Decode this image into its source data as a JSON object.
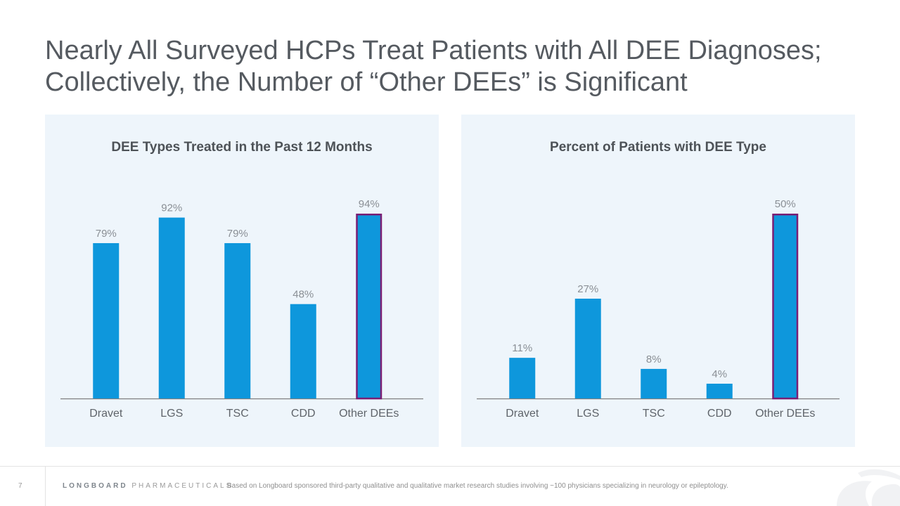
{
  "title": {
    "line1": "Nearly All Surveyed HCPs Treat Patients with All DEE Diagnoses;",
    "line2": "Collectively, the Number of “Other DEEs” is Significant"
  },
  "colors": {
    "bar": "#0e97dc",
    "highlight_outline": "#7a1e74",
    "panel_bg": "#eef5fb",
    "axis": "#7f7f7f"
  },
  "chart_data": [
    {
      "type": "bar",
      "title": "DEE Types Treated in the Past 12 Months",
      "categories": [
        "Dravet",
        "LGS",
        "TSC",
        "CDD",
        "Other DEEs"
      ],
      "values": [
        79,
        92,
        79,
        48,
        94
      ],
      "data_labels": [
        "79%",
        "92%",
        "79%",
        "48%",
        "94%"
      ],
      "highlight_index": 4,
      "ylim": [
        0,
        94
      ],
      "grid": false,
      "legend": "none"
    },
    {
      "type": "bar",
      "title": "Percent of Patients with DEE Type",
      "categories": [
        "Dravet",
        "LGS",
        "TSC",
        "CDD",
        "Other DEEs"
      ],
      "values": [
        11,
        27,
        8,
        4,
        50
      ],
      "data_labels": [
        "11%",
        "27%",
        "8%",
        "4%",
        "50%"
      ],
      "highlight_index": 4,
      "ylim": [
        0,
        50
      ],
      "grid": false,
      "legend": "none"
    }
  ],
  "footer": {
    "page_number": "7",
    "brand_bold": "LONGBOARD",
    "brand_light": "PHARMACEUTICALS",
    "note": "Based on Longboard sponsored third-party qualitative and qualitative market research studies involving ~100 physicians specializing in neurology or epileptology."
  }
}
